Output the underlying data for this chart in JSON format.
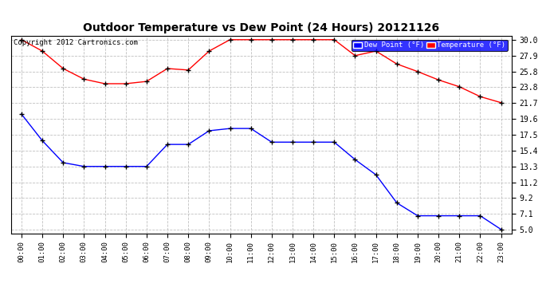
{
  "title": "Outdoor Temperature vs Dew Point (24 Hours) 20121126",
  "copyright": "Copyright 2012 Cartronics.com",
  "hours": [
    "00:00",
    "01:00",
    "02:00",
    "03:00",
    "04:00",
    "05:00",
    "06:00",
    "07:00",
    "08:00",
    "09:00",
    "10:00",
    "11:00",
    "12:00",
    "13:00",
    "14:00",
    "15:00",
    "16:00",
    "17:00",
    "18:00",
    "19:00",
    "20:00",
    "21:00",
    "22:00",
    "23:00"
  ],
  "temperature": [
    30.0,
    28.5,
    26.2,
    24.8,
    24.2,
    24.2,
    24.5,
    26.2,
    26.0,
    28.5,
    30.0,
    30.0,
    30.0,
    30.0,
    30.0,
    30.0,
    27.9,
    28.5,
    26.8,
    25.8,
    24.7,
    23.8,
    22.5,
    21.7
  ],
  "dew_point": [
    20.2,
    16.7,
    13.8,
    13.3,
    13.3,
    13.3,
    13.3,
    16.2,
    16.2,
    18.0,
    18.3,
    18.3,
    16.5,
    16.5,
    16.5,
    16.5,
    14.2,
    12.2,
    8.5,
    6.8,
    6.8,
    6.8,
    6.8,
    5.0
  ],
  "temp_color": "#ff0000",
  "dew_color": "#0000ff",
  "bg_color": "#ffffff",
  "grid_color": "#c0c0c0",
  "ylim_min": 4.5,
  "ylim_max": 30.5,
  "yticks": [
    5.0,
    7.1,
    9.2,
    11.2,
    13.3,
    15.4,
    17.5,
    19.6,
    21.7,
    23.8,
    25.8,
    27.9,
    30.0
  ],
  "legend_dew_label": "Dew Point (°F)",
  "legend_temp_label": "Temperature (°F)"
}
